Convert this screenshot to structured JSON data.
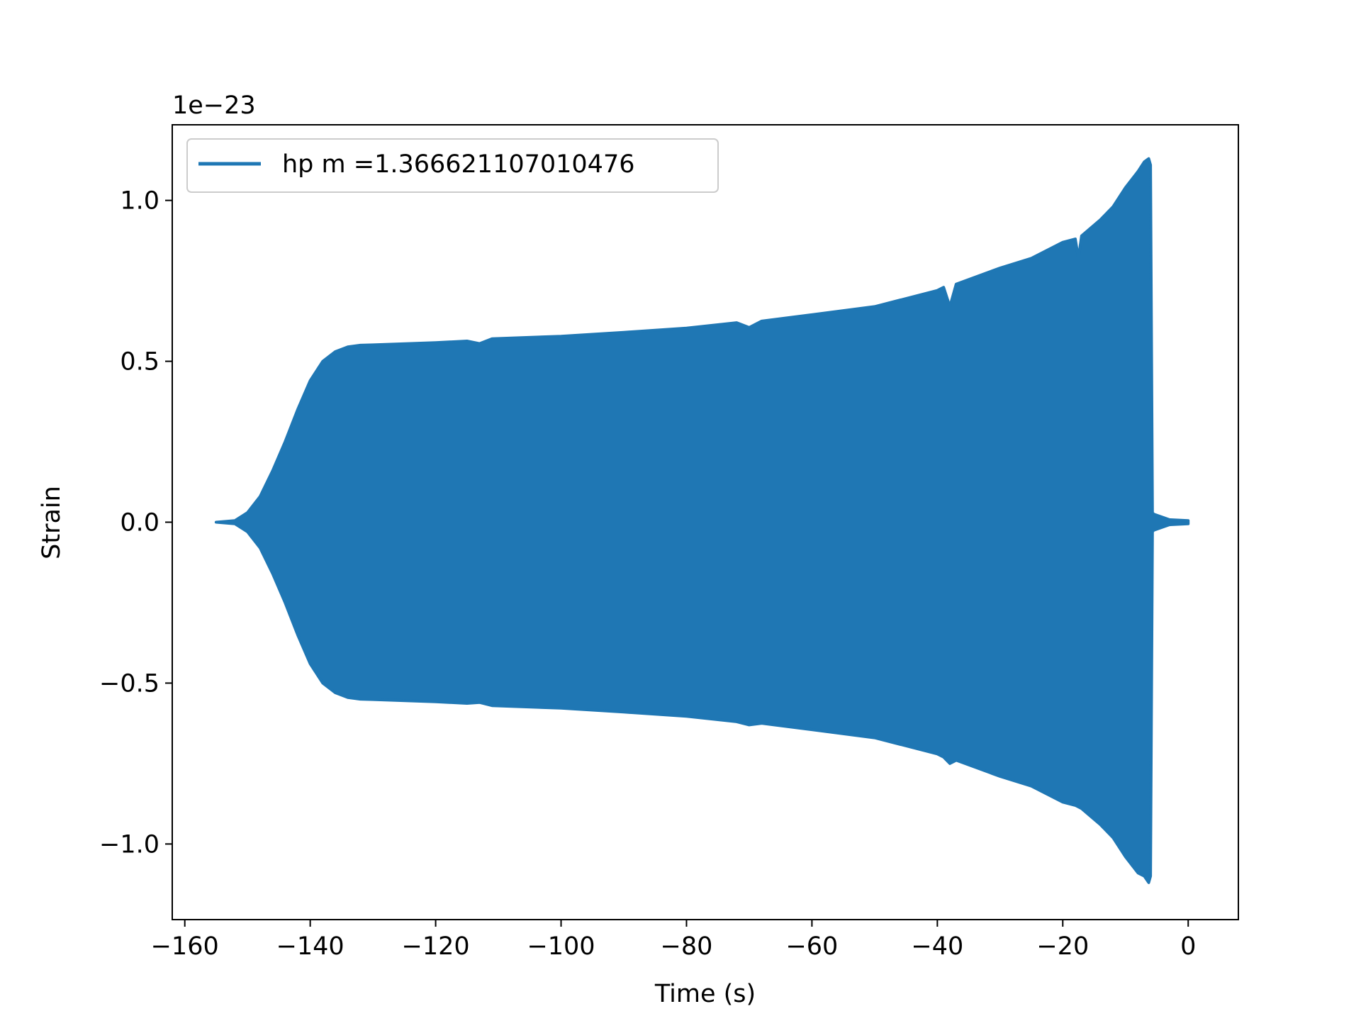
{
  "chart_data": {
    "type": "line",
    "title": "",
    "xlabel": "Time (s)",
    "ylabel": "Strain",
    "y_offset_label": "1e−23",
    "xlim": [
      -162,
      8
    ],
    "ylim": [
      -1.235,
      1.235
    ],
    "x_ticks": [
      {
        "value": -160,
        "label": "−160"
      },
      {
        "value": -140,
        "label": "−140"
      },
      {
        "value": -120,
        "label": "−120"
      },
      {
        "value": -100,
        "label": "−100"
      },
      {
        "value": -80,
        "label": "−80"
      },
      {
        "value": -60,
        "label": "−60"
      },
      {
        "value": -40,
        "label": "−40"
      },
      {
        "value": -20,
        "label": "−20"
      },
      {
        "value": 0,
        "label": "0"
      }
    ],
    "y_ticks": [
      {
        "value": 1.0,
        "label": "1.0"
      },
      {
        "value": 0.5,
        "label": "0.5"
      },
      {
        "value": 0.0,
        "label": "0.0"
      },
      {
        "value": -0.5,
        "label": "−0.5"
      },
      {
        "value": -1.0,
        "label": "−1.0"
      }
    ],
    "legend": {
      "placement": "upper-left"
    },
    "grid": false,
    "series": [
      {
        "name": "hp m =1.366621107010476",
        "color": "#1f77b4",
        "x_range": [
          -155,
          0
        ],
        "envelope_upper": [
          [
            -155,
            0.0
          ],
          [
            -152,
            0.005
          ],
          [
            -150,
            0.03
          ],
          [
            -148,
            0.08
          ],
          [
            -146,
            0.16
          ],
          [
            -144,
            0.25
          ],
          [
            -142,
            0.35
          ],
          [
            -140,
            0.44
          ],
          [
            -138,
            0.5
          ],
          [
            -136,
            0.53
          ],
          [
            -134,
            0.545
          ],
          [
            -132,
            0.55
          ],
          [
            -130,
            0.551
          ],
          [
            -120,
            0.558
          ],
          [
            -115,
            0.563
          ],
          [
            -113,
            0.555
          ],
          [
            -111,
            0.57
          ],
          [
            -100,
            0.578
          ],
          [
            -90,
            0.59
          ],
          [
            -80,
            0.603
          ],
          [
            -72,
            0.62
          ],
          [
            -70,
            0.605
          ],
          [
            -68,
            0.625
          ],
          [
            -60,
            0.645
          ],
          [
            -50,
            0.67
          ],
          [
            -40,
            0.72
          ],
          [
            -39,
            0.73
          ],
          [
            -38,
            0.67
          ],
          [
            -37,
            0.74
          ],
          [
            -30,
            0.79
          ],
          [
            -25,
            0.82
          ],
          [
            -20,
            0.87
          ],
          [
            -18,
            0.88
          ],
          [
            -17.5,
            0.82
          ],
          [
            -17,
            0.89
          ],
          [
            -14,
            0.94
          ],
          [
            -12,
            0.98
          ],
          [
            -10,
            1.04
          ],
          [
            -8,
            1.09
          ],
          [
            -7,
            1.12
          ],
          [
            -6.3,
            1.13
          ],
          [
            -6,
            1.11
          ],
          [
            -5.7,
            0.03
          ],
          [
            -5.5,
            0.025
          ],
          [
            -3,
            0.008
          ],
          [
            0,
            0.005
          ]
        ],
        "envelope_lower": [
          [
            -155,
            0.0
          ],
          [
            -152,
            -0.005
          ],
          [
            -150,
            -0.03
          ],
          [
            -148,
            -0.08
          ],
          [
            -146,
            -0.16
          ],
          [
            -144,
            -0.25
          ],
          [
            -142,
            -0.35
          ],
          [
            -140,
            -0.44
          ],
          [
            -138,
            -0.5
          ],
          [
            -136,
            -0.53
          ],
          [
            -134,
            -0.545
          ],
          [
            -132,
            -0.55
          ],
          [
            -130,
            -0.551
          ],
          [
            -120,
            -0.558
          ],
          [
            -115,
            -0.563
          ],
          [
            -113,
            -0.56
          ],
          [
            -111,
            -0.57
          ],
          [
            -100,
            -0.578
          ],
          [
            -90,
            -0.59
          ],
          [
            -80,
            -0.603
          ],
          [
            -72,
            -0.62
          ],
          [
            -70,
            -0.63
          ],
          [
            -68,
            -0.625
          ],
          [
            -60,
            -0.645
          ],
          [
            -50,
            -0.67
          ],
          [
            -40,
            -0.72
          ],
          [
            -39,
            -0.73
          ],
          [
            -38,
            -0.75
          ],
          [
            -37,
            -0.74
          ],
          [
            -30,
            -0.79
          ],
          [
            -25,
            -0.82
          ],
          [
            -20,
            -0.87
          ],
          [
            -18,
            -0.88
          ],
          [
            -17,
            -0.89
          ],
          [
            -14,
            -0.94
          ],
          [
            -12,
            -0.98
          ],
          [
            -10,
            -1.04
          ],
          [
            -8,
            -1.09
          ],
          [
            -7,
            -1.1
          ],
          [
            -6.3,
            -1.12
          ],
          [
            -6,
            -1.1
          ],
          [
            -5.7,
            -0.03
          ],
          [
            -5.5,
            -0.025
          ],
          [
            -3,
            -0.008
          ],
          [
            0,
            -0.005
          ]
        ]
      }
    ]
  }
}
